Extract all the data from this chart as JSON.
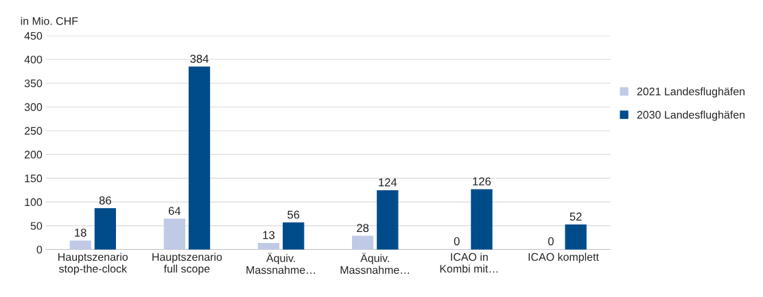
{
  "chart_data": {
    "type": "bar",
    "ylabel": "in Mio. CHF",
    "categories": [
      "Hauptszenario\nstop-the-clock",
      "Hauptszenario\nfull scope",
      "Äquiv.\nMassnahme…",
      "Äquiv.\nMassnahme…",
      "ICAO in\nKombi mit…",
      "ICAO komplett"
    ],
    "series": [
      {
        "name": "2021 Landesflughäfen",
        "color": "#c0cae6",
        "values": [
          18,
          64,
          13,
          28,
          0,
          0
        ]
      },
      {
        "name": "2030 Landesflughäfen",
        "color": "#004c8a",
        "values": [
          86,
          384,
          56,
          124,
          126,
          52
        ]
      }
    ],
    "ylim": [
      0,
      450
    ],
    "yticks": [
      0,
      50,
      100,
      150,
      200,
      250,
      300,
      350,
      400,
      450
    ],
    "grid": "y",
    "legend": "right",
    "data_labels": true
  }
}
